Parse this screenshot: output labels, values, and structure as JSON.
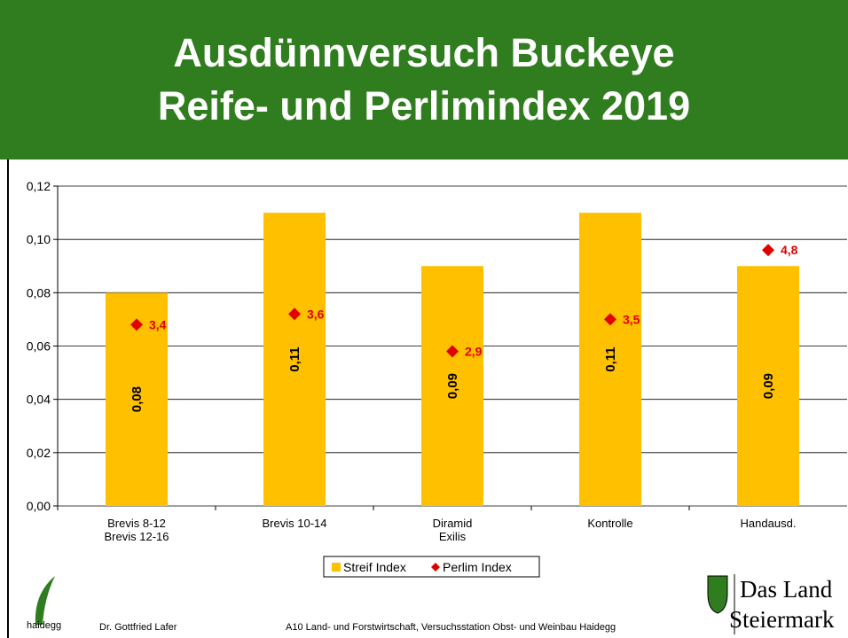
{
  "chart_data": {
    "type": "bar",
    "title": "Ausdünnversuch Buckeye\nReife- und Perlimindex 2019",
    "categories": [
      "Brevis 8-12\nBrevis 12-16",
      "Brevis 10-14",
      "Diramid\nExilis",
      "Kontrolle",
      "Handausd."
    ],
    "series": [
      {
        "name": "Streif Index",
        "color": "#ffc000",
        "type": "bar",
        "values": [
          0.08,
          0.11,
          0.09,
          0.11,
          0.09
        ],
        "value_labels": [
          "0,08",
          "0,11",
          "0,09",
          "0,11",
          "0,09"
        ]
      },
      {
        "name": "Perlim Index",
        "color": "#e00000",
        "type": "scatter",
        "axis": "y2",
        "values": [
          3.4,
          3.6,
          2.9,
          3.5,
          4.8
        ],
        "value_labels": [
          "3,4",
          "3,6",
          "2,9",
          "3,5",
          "4,8"
        ]
      }
    ],
    "ylim": [
      0,
      0.12
    ],
    "yticks": [
      {
        "value": 0,
        "label": "0,00"
      },
      {
        "value": 0.02,
        "label": "0,02"
      },
      {
        "value": 0.04,
        "label": "0,04"
      },
      {
        "value": 0.06,
        "label": "0,06"
      },
      {
        "value": 0.08,
        "label": "0,08"
      },
      {
        "value": 0.1,
        "label": "0,10"
      },
      {
        "value": 0.12,
        "label": "0,12"
      }
    ],
    "y2lim": [
      0,
      6
    ],
    "grid": true,
    "legend": "bottom"
  },
  "footer": {
    "logo_text": "haidegg",
    "author": "Dr. Gottfried Lafer",
    "institute": "A10 Land- und Forstwirtschaft, Versuchsstation Obst- und Weinbau Haidegg",
    "brand_line1": "Das Land",
    "brand_line2": "Steiermark"
  }
}
